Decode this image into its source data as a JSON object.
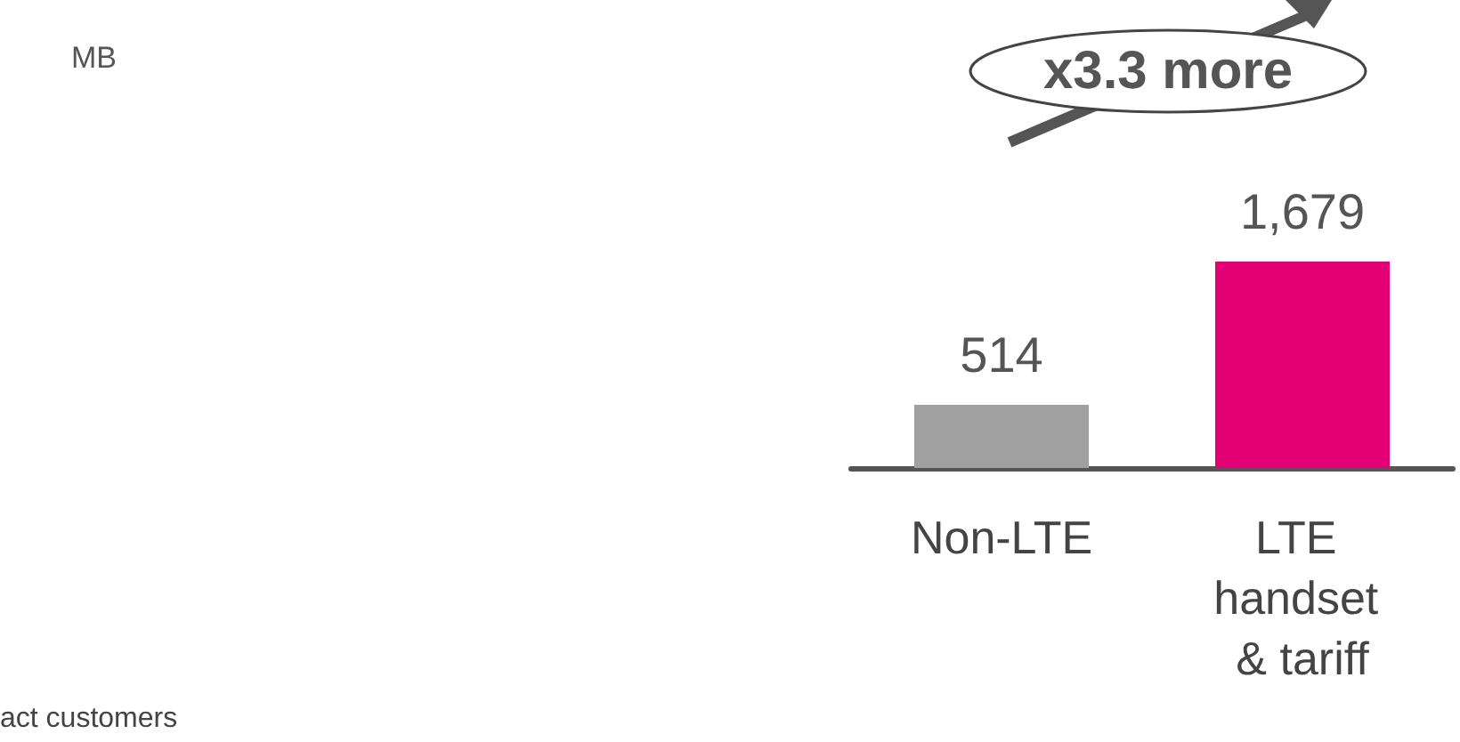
{
  "chart_data": {
    "type": "bar",
    "categories": [
      "Non-LTE",
      "LTE handset & tariff"
    ],
    "values": [
      514,
      1679
    ],
    "value_labels": [
      "514",
      "1,679"
    ],
    "colors": [
      "#a0a0a0",
      "#e20074"
    ],
    "annotations": [
      "MB",
      "x3.3 more",
      "act customers"
    ]
  }
}
